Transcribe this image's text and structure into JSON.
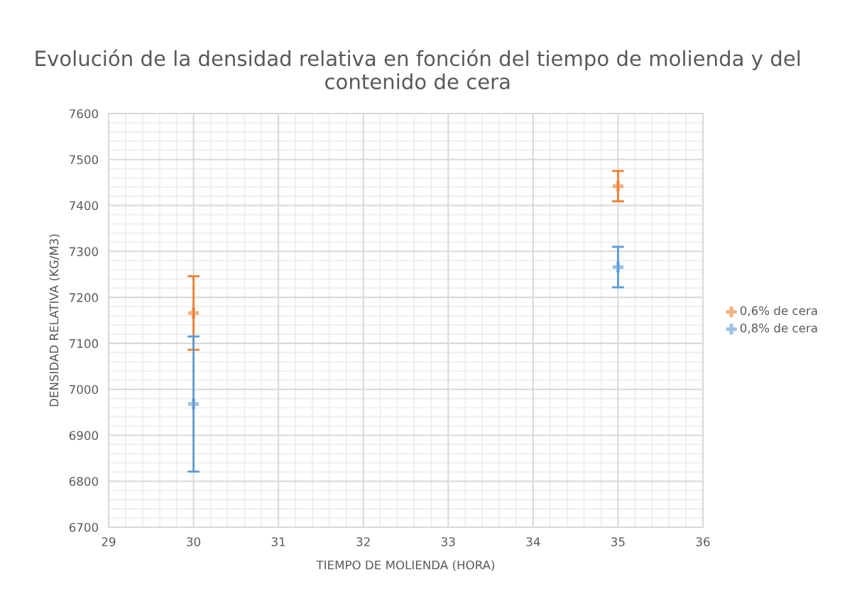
{
  "chart_data": {
    "type": "scatter",
    "title": "Evolución de la densidad relativa en fonción del tiempo de molienda y del contenido de cera",
    "xlabel": "TIEMPO DE MOLIENDA (HORA)",
    "ylabel": "DENSIDAD RELATIVA (KG/M3)",
    "x": [
      30,
      35
    ],
    "series": [
      {
        "name": "0,6% de cera",
        "color": "#ed7d31",
        "values": [
          7166,
          7442
        ],
        "errors": [
          80,
          33
        ]
      },
      {
        "name": "0,8% de cera",
        "color": "#5b9bd5",
        "values": [
          6968,
          7266
        ],
        "errors": [
          147,
          44
        ]
      }
    ],
    "xlim": [
      29,
      36
    ],
    "xticks": [
      29,
      30,
      31,
      32,
      33,
      34,
      35,
      36
    ],
    "ylim": [
      6700,
      7600
    ],
    "yticks": [
      6700,
      6800,
      6900,
      7000,
      7100,
      7200,
      7300,
      7400,
      7500,
      7600
    ],
    "grid": true,
    "legend": "right",
    "marker": "cross"
  }
}
